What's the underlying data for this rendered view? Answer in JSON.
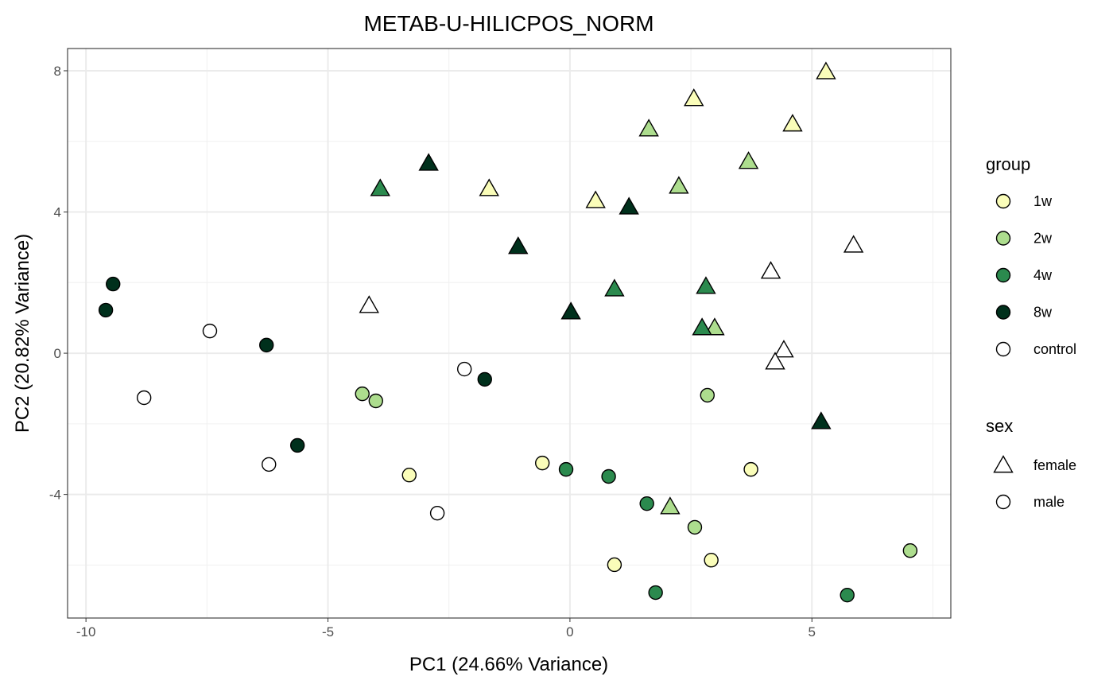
{
  "chart_data": {
    "type": "scatter",
    "title": "METAB-U-HILICPOS_NORM",
    "xlabel": "PC1 (24.66% Variance)",
    "ylabel": "PC2 (20.82% Variance)",
    "xlim": [
      -10.38,
      7.87
    ],
    "ylim": [
      -7.5,
      8.63
    ],
    "xticks": [
      -10,
      -5,
      0,
      5
    ],
    "xtick_labels": [
      "-10",
      "-5",
      "0",
      "5"
    ],
    "yticks": [
      -4,
      0,
      4,
      8
    ],
    "ytick_labels": [
      "-4",
      "0",
      "4",
      "8"
    ],
    "grid": true,
    "legend_position": "right",
    "legend": {
      "group_title": "group",
      "groups": [
        {
          "name": "1w",
          "color": "#FAFDB9"
        },
        {
          "name": "2w",
          "color": "#ADDD8E"
        },
        {
          "name": "4w",
          "color": "#2B8A4E"
        },
        {
          "name": "8w",
          "color": "#00301C"
        },
        {
          "name": "control",
          "color": "#FFFFFF"
        }
      ],
      "sex_title": "sex",
      "sexes": [
        {
          "name": "female",
          "shape": "triangle"
        },
        {
          "name": "male",
          "shape": "circle"
        }
      ]
    },
    "points": [
      {
        "x": 5.29,
        "y": 7.97,
        "group": "1w",
        "sex": "female"
      },
      {
        "x": 2.56,
        "y": 7.21,
        "group": "1w",
        "sex": "female"
      },
      {
        "x": 4.6,
        "y": 6.49,
        "group": "1w",
        "sex": "female"
      },
      {
        "x": -1.67,
        "y": 4.66,
        "group": "1w",
        "sex": "female"
      },
      {
        "x": 0.53,
        "y": 4.32,
        "group": "1w",
        "sex": "female"
      },
      {
        "x": 1.63,
        "y": 6.35,
        "group": "2w",
        "sex": "female"
      },
      {
        "x": 3.69,
        "y": 5.43,
        "group": "2w",
        "sex": "female"
      },
      {
        "x": 2.25,
        "y": 4.73,
        "group": "2w",
        "sex": "female"
      },
      {
        "x": 2.99,
        "y": 0.72,
        "group": "2w",
        "sex": "female"
      },
      {
        "x": 2.07,
        "y": -4.35,
        "group": "2w",
        "sex": "female"
      },
      {
        "x": -3.92,
        "y": 4.66,
        "group": "4w",
        "sex": "female"
      },
      {
        "x": 0.92,
        "y": 1.82,
        "group": "4w",
        "sex": "female"
      },
      {
        "x": 2.81,
        "y": 1.89,
        "group": "4w",
        "sex": "female"
      },
      {
        "x": 2.73,
        "y": 0.72,
        "group": "4w",
        "sex": "female"
      },
      {
        "x": -2.92,
        "y": 5.38,
        "group": "8w",
        "sex": "female"
      },
      {
        "x": 1.22,
        "y": 4.14,
        "group": "8w",
        "sex": "female"
      },
      {
        "x": -1.07,
        "y": 3.02,
        "group": "8w",
        "sex": "female"
      },
      {
        "x": 0.02,
        "y": 1.17,
        "group": "8w",
        "sex": "female"
      },
      {
        "x": 5.19,
        "y": -1.94,
        "group": "8w",
        "sex": "female"
      },
      {
        "x": 5.86,
        "y": 3.06,
        "group": "control",
        "sex": "female"
      },
      {
        "x": 4.15,
        "y": 2.32,
        "group": "control",
        "sex": "female"
      },
      {
        "x": -4.15,
        "y": 1.35,
        "group": "control",
        "sex": "female"
      },
      {
        "x": 4.42,
        "y": 0.09,
        "group": "control",
        "sex": "female"
      },
      {
        "x": 4.24,
        "y": -0.25,
        "group": "control",
        "sex": "female"
      },
      {
        "x": -3.32,
        "y": -3.45,
        "group": "1w",
        "sex": "male"
      },
      {
        "x": -0.57,
        "y": -3.11,
        "group": "1w",
        "sex": "male"
      },
      {
        "x": 3.74,
        "y": -3.29,
        "group": "1w",
        "sex": "male"
      },
      {
        "x": 0.92,
        "y": -5.99,
        "group": "1w",
        "sex": "male"
      },
      {
        "x": 2.92,
        "y": -5.86,
        "group": "1w",
        "sex": "male"
      },
      {
        "x": -4.29,
        "y": -1.15,
        "group": "2w",
        "sex": "male"
      },
      {
        "x": -4.01,
        "y": -1.35,
        "group": "2w",
        "sex": "male"
      },
      {
        "x": 2.84,
        "y": -1.19,
        "group": "2w",
        "sex": "male"
      },
      {
        "x": 2.58,
        "y": -4.93,
        "group": "2w",
        "sex": "male"
      },
      {
        "x": 7.03,
        "y": -5.59,
        "group": "2w",
        "sex": "male"
      },
      {
        "x": -0.08,
        "y": -3.29,
        "group": "4w",
        "sex": "male"
      },
      {
        "x": 0.8,
        "y": -3.49,
        "group": "4w",
        "sex": "male"
      },
      {
        "x": 1.59,
        "y": -4.26,
        "group": "4w",
        "sex": "male"
      },
      {
        "x": 1.77,
        "y": -6.78,
        "group": "4w",
        "sex": "male"
      },
      {
        "x": 5.73,
        "y": -6.85,
        "group": "4w",
        "sex": "male"
      },
      {
        "x": -9.44,
        "y": 1.96,
        "group": "8w",
        "sex": "male"
      },
      {
        "x": -9.59,
        "y": 1.22,
        "group": "8w",
        "sex": "male"
      },
      {
        "x": -6.27,
        "y": 0.23,
        "group": "8w",
        "sex": "male"
      },
      {
        "x": -5.63,
        "y": -2.61,
        "group": "8w",
        "sex": "male"
      },
      {
        "x": -1.76,
        "y": -0.74,
        "group": "8w",
        "sex": "male"
      },
      {
        "x": -7.44,
        "y": 0.63,
        "group": "control",
        "sex": "male"
      },
      {
        "x": -8.8,
        "y": -1.26,
        "group": "control",
        "sex": "male"
      },
      {
        "x": -6.22,
        "y": -3.15,
        "group": "control",
        "sex": "male"
      },
      {
        "x": -2.18,
        "y": -0.45,
        "group": "control",
        "sex": "male"
      },
      {
        "x": -2.74,
        "y": -4.53,
        "group": "control",
        "sex": "male"
      }
    ]
  }
}
